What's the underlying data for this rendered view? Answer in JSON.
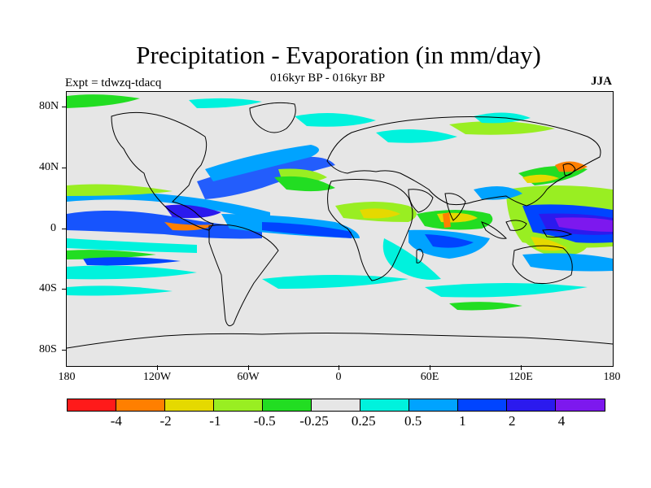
{
  "header": {
    "title": "Precipitation - Evaporation (in mm/day)",
    "subtitle": "016kyr BP - 016kyr BP",
    "left_label": "Expt = tdwzq-tdacq",
    "right_label": "JJA"
  },
  "map": {
    "lat_labels": [
      "80N",
      "40N",
      "0",
      "40S",
      "80S"
    ],
    "lon_labels": [
      "180",
      "120W",
      "60W",
      "0",
      "60E",
      "120E",
      "180"
    ],
    "background_color": "#e6e6e6",
    "coastline_color": "#000000"
  },
  "colorbar": {
    "colors": [
      "#ff1a1a",
      "#ff7f00",
      "#e5d900",
      "#99ee22",
      "#22dd22",
      "#e6e6e6",
      "#00f2dd",
      "#00a3ff",
      "#0044ff",
      "#2b1aee",
      "#7d18ee"
    ],
    "labels": [
      "-4",
      "-2",
      "-1",
      "-0.5",
      "-0.25",
      "0.25",
      "0.5",
      "1",
      "2",
      "4"
    ]
  }
}
